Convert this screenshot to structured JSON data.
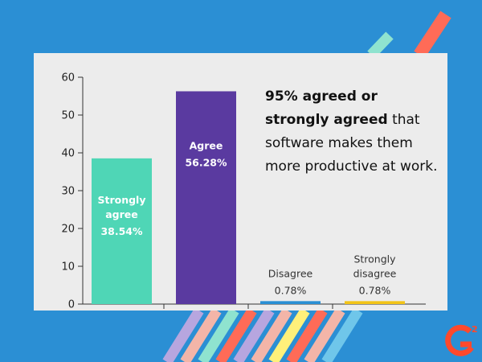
{
  "chart_data": {
    "type": "bar",
    "categories": [
      "Strongly agree",
      "Agree",
      "Disagree",
      "Strongly disagree"
    ],
    "values": [
      38.54,
      56.28,
      0.78,
      0.78
    ],
    "value_labels": [
      "38.54%",
      "56.28%",
      "0.78%",
      "0.78%"
    ],
    "category_label_lines": [
      [
        "Strongly",
        "agree"
      ],
      [
        "Agree"
      ],
      [
        "Disagree"
      ],
      [
        "Strongly",
        "disagree"
      ]
    ],
    "colors": [
      "#4fd6b6",
      "#5a3aa0",
      "#2a8fd3",
      "#f2c418"
    ],
    "yticks": [
      0,
      10,
      20,
      30,
      40,
      50,
      60
    ],
    "ylim": [
      0,
      60
    ],
    "grid": false,
    "annotation": {
      "bold": "95% agreed or strongly agreed",
      "rest": "that software makes them more productive at work."
    }
  },
  "brand": {
    "background": "#2b8fd4",
    "logo_color": "#ff492c",
    "logo_icon": "g2-logo-icon"
  }
}
